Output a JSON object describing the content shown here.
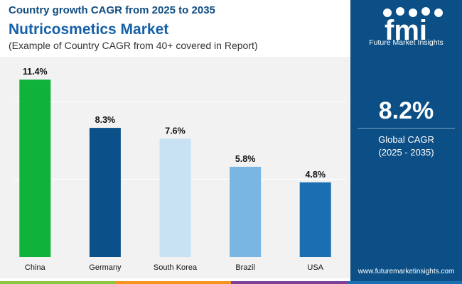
{
  "header": {
    "line1": "Country growth CAGR from 2025 to 2035",
    "title": "Nutricosmetics Market",
    "subtitle": "(Example of Country CAGR from 40+ covered in Report)"
  },
  "chart_data": {
    "type": "bar",
    "categories": [
      "China",
      "Germany",
      "South Korea",
      "Brazil",
      "USA"
    ],
    "values": [
      11.4,
      8.3,
      7.6,
      5.8,
      4.8
    ],
    "data_labels": [
      "11.4%",
      "8.3%",
      "7.6%",
      "5.8%",
      "4.8%"
    ],
    "bar_colors": [
      "#0fb33a",
      "#0b5089",
      "#c8e2f4",
      "#7ab6e3",
      "#1b6fb0"
    ],
    "ylim": [
      0,
      12
    ],
    "gridlines_at": [
      5,
      10
    ],
    "grid": true,
    "title": "",
    "xlabel": "",
    "ylabel": ""
  },
  "sidebar": {
    "logo_letters": "fmi",
    "logo_text": "Future Market Insights",
    "kpi_value": "8.2%",
    "kpi_label_line1": "Global CAGR",
    "kpi_label_line2": "(2025 - 2035)",
    "website": "www.futuremarketinsights.com"
  },
  "colors": {
    "sidebar_bg": "#0b4f86",
    "plot_bg": "#f2f2f2",
    "title_blue": "#1560a8",
    "bottom_bar": [
      "#8dc63f",
      "#f7941d",
      "#7b3f98",
      "#1b6fb0"
    ]
  }
}
